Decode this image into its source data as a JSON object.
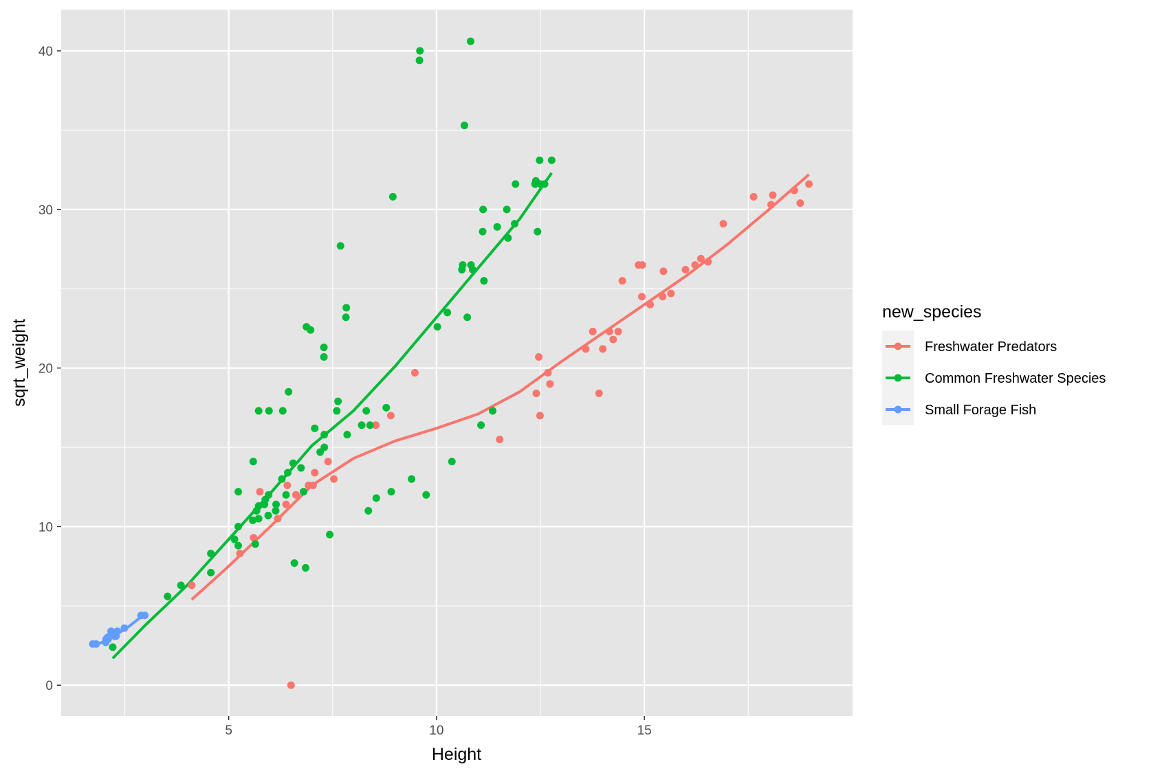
{
  "chart_data": {
    "type": "scatter",
    "xlabel": "Height",
    "ylabel": "sqrt_weight",
    "xlim": [
      0.97,
      20.01
    ],
    "ylim": [
      -1.94,
      42.6
    ],
    "x_ticks": [
      5,
      10,
      15
    ],
    "y_ticks": [
      0,
      10,
      20,
      30,
      40
    ],
    "x_minor": [
      2.5,
      7.5,
      12.5,
      17.5
    ],
    "y_minor": [
      5,
      15,
      25,
      35
    ],
    "grid": true,
    "legend": {
      "title": "new_species",
      "position": "right"
    },
    "colors": {
      "panel": "#e5e5e5",
      "grid": "#ffffff"
    },
    "series": [
      {
        "name": "Freshwater Predators",
        "color": "#f8766d",
        "points": [
          [
            4.11,
            6.3
          ],
          [
            5.27,
            8.3
          ],
          [
            5.6,
            9.3
          ],
          [
            5.75,
            12.2
          ],
          [
            6.18,
            10.5
          ],
          [
            6.38,
            11.4
          ],
          [
            6.41,
            12.6
          ],
          [
            6.5,
            0.0
          ],
          [
            6.62,
            12.0
          ],
          [
            6.92,
            12.6
          ],
          [
            7.03,
            12.6
          ],
          [
            7.07,
            13.4
          ],
          [
            7.39,
            14.1
          ],
          [
            7.53,
            13.0
          ],
          [
            8.54,
            16.4
          ],
          [
            8.9,
            17.0
          ],
          [
            9.48,
            19.7
          ],
          [
            11.52,
            15.5
          ],
          [
            12.4,
            18.4
          ],
          [
            12.46,
            20.7
          ],
          [
            12.49,
            17.0
          ],
          [
            12.68,
            19.7
          ],
          [
            12.73,
            19.0
          ],
          [
            13.59,
            21.2
          ],
          [
            13.76,
            22.3
          ],
          [
            13.91,
            18.4
          ],
          [
            14.0,
            21.2
          ],
          [
            14.16,
            22.3
          ],
          [
            14.25,
            21.8
          ],
          [
            14.37,
            22.3
          ],
          [
            14.47,
            25.5
          ],
          [
            14.86,
            26.5
          ],
          [
            14.94,
            24.5
          ],
          [
            14.95,
            26.5
          ],
          [
            15.14,
            24.0
          ],
          [
            15.44,
            24.5
          ],
          [
            15.46,
            26.1
          ],
          [
            15.64,
            24.7
          ],
          [
            15.99,
            26.2
          ],
          [
            16.22,
            26.5
          ],
          [
            16.36,
            26.9
          ],
          [
            16.53,
            26.7
          ],
          [
            16.9,
            29.1
          ],
          [
            17.63,
            30.8
          ],
          [
            18.05,
            30.3
          ],
          [
            18.09,
            30.9
          ],
          [
            18.61,
            31.2
          ],
          [
            18.75,
            30.4
          ],
          [
            18.96,
            31.6
          ]
        ],
        "smooth": [
          [
            4.11,
            5.4
          ],
          [
            5.0,
            7.5
          ],
          [
            6.0,
            10.0
          ],
          [
            7.0,
            12.6
          ],
          [
            8.0,
            14.3
          ],
          [
            9.0,
            15.4
          ],
          [
            10.0,
            16.2
          ],
          [
            11.0,
            17.1
          ],
          [
            12.0,
            18.5
          ],
          [
            13.0,
            20.4
          ],
          [
            14.0,
            22.2
          ],
          [
            15.0,
            24.0
          ],
          [
            16.0,
            25.8
          ],
          [
            17.0,
            27.8
          ],
          [
            18.0,
            30.0
          ],
          [
            18.96,
            32.2
          ]
        ]
      },
      {
        "name": "Common Freshwater Species",
        "color": "#00ba38",
        "points": [
          [
            2.21,
            2.4
          ],
          [
            3.53,
            5.6
          ],
          [
            3.85,
            6.3
          ],
          [
            4.57,
            7.1
          ],
          [
            4.57,
            8.3
          ],
          [
            5.14,
            9.2
          ],
          [
            5.23,
            8.8
          ],
          [
            5.23,
            10.0
          ],
          [
            5.23,
            12.2
          ],
          [
            5.58,
            10.4
          ],
          [
            5.59,
            14.1
          ],
          [
            5.64,
            8.9
          ],
          [
            5.67,
            11.0
          ],
          [
            5.72,
            10.5
          ],
          [
            5.72,
            11.3
          ],
          [
            5.72,
            17.3
          ],
          [
            5.86,
            11.4
          ],
          [
            5.88,
            11.7
          ],
          [
            5.95,
            10.7
          ],
          [
            5.96,
            12.0
          ],
          [
            5.97,
            17.3
          ],
          [
            6.13,
            11.0
          ],
          [
            6.14,
            11.4
          ],
          [
            6.28,
            13.0
          ],
          [
            6.3,
            17.3
          ],
          [
            6.38,
            12.0
          ],
          [
            6.42,
            13.4
          ],
          [
            6.44,
            18.5
          ],
          [
            6.55,
            14.0
          ],
          [
            6.58,
            7.7
          ],
          [
            6.74,
            13.7
          ],
          [
            6.8,
            12.2
          ],
          [
            6.85,
            7.4
          ],
          [
            6.87,
            22.6
          ],
          [
            6.97,
            22.4
          ],
          [
            7.07,
            16.2
          ],
          [
            7.2,
            14.7
          ],
          [
            7.29,
            20.7
          ],
          [
            7.29,
            21.3
          ],
          [
            7.3,
            15.0
          ],
          [
            7.3,
            15.8
          ],
          [
            7.43,
            9.5
          ],
          [
            7.6,
            17.3
          ],
          [
            7.63,
            17.9
          ],
          [
            7.69,
            27.7
          ],
          [
            7.82,
            23.2
          ],
          [
            7.83,
            23.8
          ],
          [
            7.85,
            15.8
          ],
          [
            8.2,
            16.4
          ],
          [
            8.31,
            17.3
          ],
          [
            8.36,
            11.0
          ],
          [
            8.4,
            16.4
          ],
          [
            8.55,
            11.8
          ],
          [
            8.79,
            17.5
          ],
          [
            8.91,
            12.2
          ],
          [
            8.95,
            30.8
          ],
          [
            9.4,
            13.0
          ],
          [
            9.59,
            39.4
          ],
          [
            9.6,
            40.0
          ],
          [
            9.75,
            12.0
          ],
          [
            10.02,
            22.6
          ],
          [
            10.26,
            23.5
          ],
          [
            10.37,
            14.1
          ],
          [
            10.61,
            26.2
          ],
          [
            10.63,
            26.5
          ],
          [
            10.67,
            35.3
          ],
          [
            10.74,
            23.2
          ],
          [
            10.82,
            40.6
          ],
          [
            10.83,
            26.5
          ],
          [
            10.87,
            26.2
          ],
          [
            11.07,
            16.4
          ],
          [
            11.11,
            28.6
          ],
          [
            11.12,
            30.0
          ],
          [
            11.14,
            25.5
          ],
          [
            11.35,
            17.3
          ],
          [
            11.46,
            28.9
          ],
          [
            11.69,
            30.0
          ],
          [
            11.72,
            28.2
          ],
          [
            11.88,
            29.1
          ],
          [
            11.9,
            31.6
          ],
          [
            12.37,
            31.6
          ],
          [
            12.39,
            31.8
          ],
          [
            12.43,
            28.6
          ],
          [
            12.48,
            33.1
          ],
          [
            12.5,
            31.6
          ],
          [
            12.6,
            31.6
          ],
          [
            12.77,
            33.1
          ]
        ],
        "smooth": [
          [
            2.21,
            1.7
          ],
          [
            3.0,
            3.8
          ],
          [
            4.0,
            6.3
          ],
          [
            5.0,
            9.2
          ],
          [
            6.0,
            12.1
          ],
          [
            7.0,
            15.1
          ],
          [
            8.0,
            17.3
          ],
          [
            9.0,
            20.1
          ],
          [
            10.0,
            23.2
          ],
          [
            11.0,
            26.3
          ],
          [
            12.0,
            29.4
          ],
          [
            12.77,
            32.3
          ]
        ]
      },
      {
        "name": "Small Forage Fish",
        "color": "#619cff",
        "points": [
          [
            1.73,
            2.6
          ],
          [
            1.81,
            2.6
          ],
          [
            2.04,
            2.7
          ],
          [
            2.05,
            2.9
          ],
          [
            2.08,
            3.0
          ],
          [
            2.1,
            2.9
          ],
          [
            2.14,
            3.1
          ],
          [
            2.17,
            3.4
          ],
          [
            2.22,
            3.2
          ],
          [
            2.25,
            3.1
          ],
          [
            2.29,
            3.1
          ],
          [
            2.32,
            3.4
          ],
          [
            2.49,
            3.6
          ],
          [
            2.89,
            4.4
          ],
          [
            2.98,
            4.4
          ]
        ],
        "smooth": [
          [
            1.73,
            2.5
          ],
          [
            2.0,
            2.75
          ],
          [
            2.3,
            3.2
          ],
          [
            2.6,
            3.7
          ],
          [
            2.98,
            4.5
          ]
        ]
      }
    ]
  }
}
